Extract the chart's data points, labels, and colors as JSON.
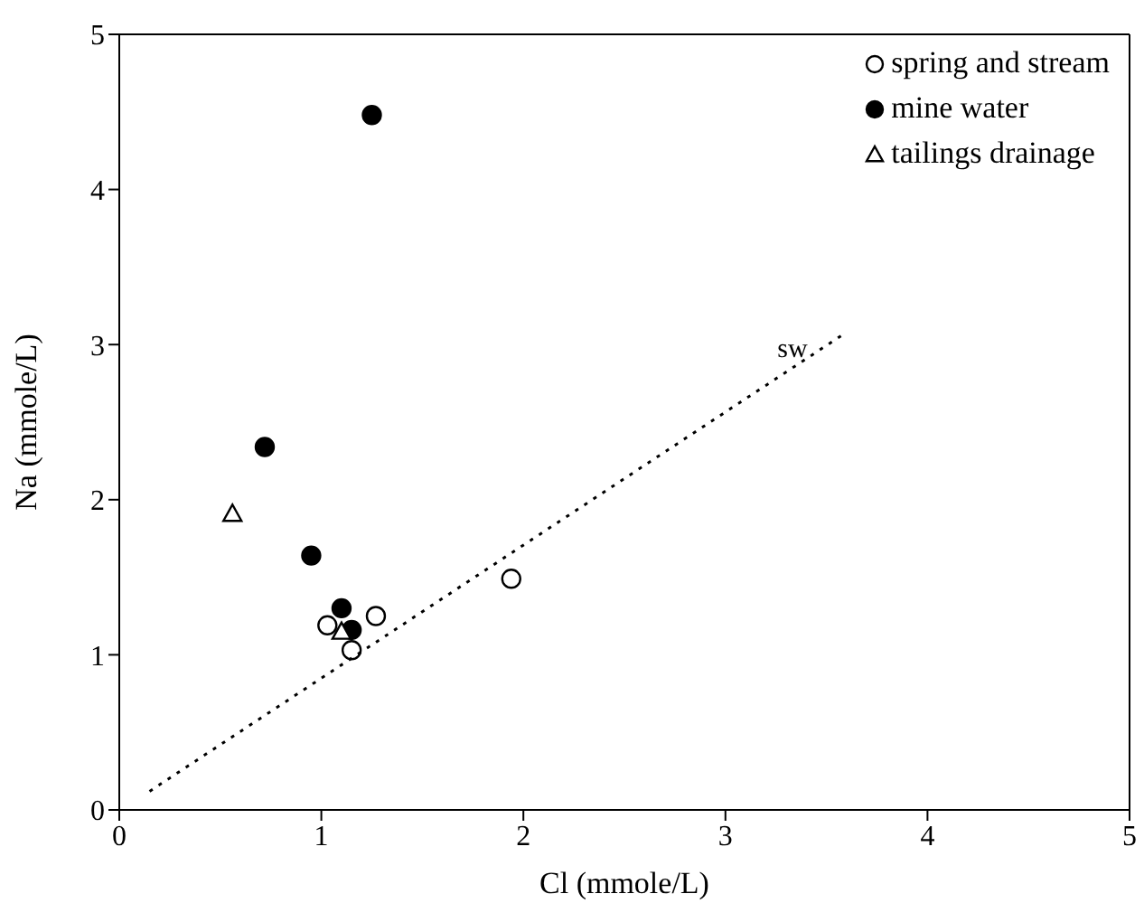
{
  "chart_data": {
    "type": "scatter",
    "xlabel": "Cl (mmole/L)",
    "ylabel": "Na (mmole/L)",
    "xlim": [
      0,
      5
    ],
    "ylim": [
      0,
      5
    ],
    "xticks": [
      0,
      1,
      2,
      3,
      4,
      5
    ],
    "yticks": [
      0,
      1,
      2,
      3,
      4,
      5
    ],
    "legend": "top right",
    "grid": false,
    "annotations": [
      "sw"
    ],
    "series": [
      {
        "name": "spring and stream",
        "color": "#ffffff",
        "marker": "circle",
        "x": [
          1.03,
          1.27,
          1.15,
          1.94
        ],
        "values": [
          1.19,
          1.25,
          1.03,
          1.49
        ]
      },
      {
        "name": "mine water",
        "color": "#000000",
        "marker": "circle",
        "x": [
          1.25,
          0.72,
          0.95,
          1.1,
          1.15
        ],
        "values": [
          4.48,
          2.34,
          1.64,
          1.3,
          1.16
        ]
      },
      {
        "name": "tailings drainage",
        "color": "#ffffff",
        "marker": "triangle",
        "x": [
          0.56,
          1.1
        ],
        "values": [
          1.91,
          1.15
        ]
      },
      {
        "type": "line",
        "color": "#000000",
        "line_style": "dotted",
        "marker": "none",
        "x": [
          0.15,
          3.6
        ],
        "values": [
          0.12,
          3.08
        ]
      }
    ]
  }
}
